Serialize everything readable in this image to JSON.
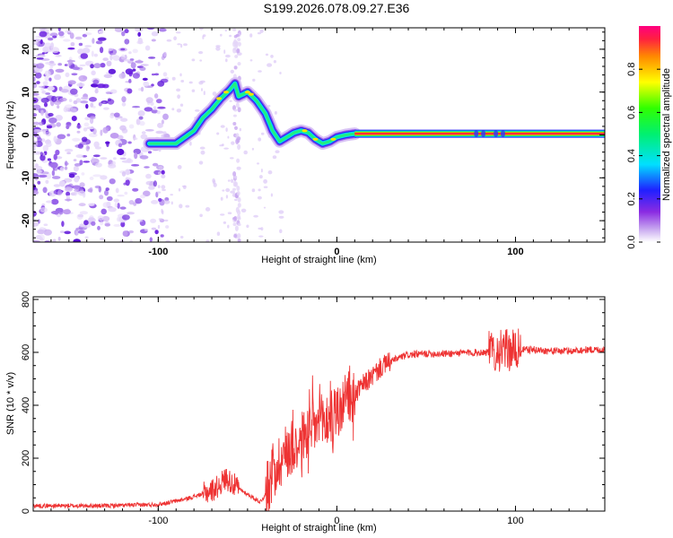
{
  "title": "S199.2026.078.09.27.E36",
  "chart_data": [
    {
      "type": "heatmap",
      "name": "spectrogram",
      "xlabel": "Height of straight line (km)",
      "ylabel": "Frequency (Hz)",
      "xlim": [
        -170,
        150
      ],
      "ylim": [
        -25,
        25
      ],
      "xticks": [
        -100,
        0,
        100
      ],
      "yticks": [
        -20,
        -10,
        0,
        10,
        20
      ],
      "colorbar": {
        "label": "Normalized spectral amplitude",
        "range": [
          0,
          1
        ],
        "ticks": [
          0.0,
          0.2,
          0.4,
          0.6,
          0.8
        ]
      },
      "ridge": {
        "x": [
          -105,
          -95,
          -90,
          -85,
          -80,
          -75,
          -70,
          -65,
          -60,
          -57,
          -55,
          -50,
          -45,
          -40,
          -36,
          -32,
          -28,
          -24,
          -20,
          -16,
          -12,
          -8,
          -4,
          0,
          5,
          10,
          20,
          40,
          60,
          80,
          100,
          120,
          150
        ],
        "y": [
          -2,
          -2,
          -2,
          -0.5,
          1,
          4,
          6,
          8.5,
          10.5,
          12,
          9,
          10,
          8,
          5,
          1,
          -1.5,
          -0.5,
          0.5,
          1,
          0.5,
          -1,
          -2,
          -1.5,
          -0.5,
          0,
          0.3,
          0.3,
          0.3,
          0.3,
          0.3,
          0.3,
          0.3,
          0.3
        ]
      }
    },
    {
      "type": "line",
      "name": "snr",
      "xlabel": "Height of straight line (km)",
      "ylabel": "SNR (10 * v/v)",
      "xlim": [
        -170,
        150
      ],
      "ylim": [
        0,
        810
      ],
      "xticks": [
        -100,
        0,
        100
      ],
      "yticks": [
        0,
        200,
        400,
        600,
        800
      ],
      "color": "#ee3333",
      "trend": {
        "x": [
          -170,
          -130,
          -100,
          -85,
          -75,
          -68,
          -62,
          -55,
          -48,
          -43,
          -40,
          -35,
          -30,
          -25,
          -20,
          -15,
          -10,
          -5,
          0,
          5,
          10,
          15,
          20,
          25,
          30,
          35,
          40,
          50,
          60,
          70,
          80,
          90,
          100,
          110,
          120,
          130,
          140,
          150
        ],
        "y": [
          20,
          20,
          25,
          45,
          65,
          85,
          125,
          85,
          55,
          35,
          60,
          160,
          210,
          250,
          270,
          310,
          330,
          345,
          370,
          410,
          440,
          480,
          510,
          545,
          565,
          580,
          590,
          595,
          595,
          598,
          600,
          605,
          610,
          610,
          605,
          605,
          610,
          610
        ]
      }
    }
  ]
}
